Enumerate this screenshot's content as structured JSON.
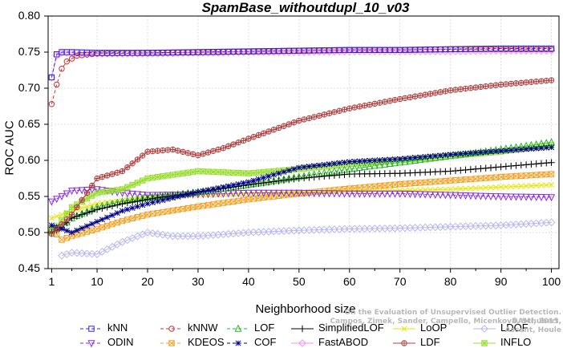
{
  "chart_data": {
    "type": "line",
    "title": "SpamBase_withoutdupl_10_v03",
    "xlabel": "Neighborhood size",
    "ylabel": "ROC AUC",
    "xlim": [
      1,
      100
    ],
    "ylim": [
      0.45,
      0.8
    ],
    "xticks": [
      "1",
      "10",
      "20",
      "30",
      "40",
      "50",
      "60",
      "70",
      "80",
      "90",
      "100"
    ],
    "yticks": [
      "0.45",
      "0.50",
      "0.55",
      "0.60",
      "0.65",
      "0.70",
      "0.75",
      "0.80"
    ],
    "legend_position": "bottom",
    "series": [
      {
        "name": "kNN",
        "color": "#2b2bd9",
        "marker": "square",
        "dash": "4,3",
        "points": [
          [
            1,
            0.715
          ],
          [
            2,
            0.747
          ],
          [
            3,
            0.75
          ],
          [
            5,
            0.75
          ],
          [
            10,
            0.749
          ],
          [
            20,
            0.749
          ],
          [
            30,
            0.75
          ],
          [
            40,
            0.751
          ],
          [
            50,
            0.752
          ],
          [
            60,
            0.753
          ],
          [
            70,
            0.753
          ],
          [
            80,
            0.754
          ],
          [
            90,
            0.755
          ],
          [
            100,
            0.755
          ]
        ]
      },
      {
        "name": "kNNW",
        "color": "#c83030",
        "marker": "circle",
        "dash": "4,3",
        "points": [
          [
            1,
            0.678
          ],
          [
            2,
            0.705
          ],
          [
            3,
            0.727
          ],
          [
            4,
            0.737
          ],
          [
            6,
            0.745
          ],
          [
            10,
            0.748
          ],
          [
            20,
            0.749
          ],
          [
            30,
            0.75
          ],
          [
            40,
            0.751
          ],
          [
            50,
            0.752
          ],
          [
            60,
            0.753
          ],
          [
            70,
            0.753
          ],
          [
            80,
            0.754
          ],
          [
            90,
            0.754
          ],
          [
            100,
            0.754
          ]
        ]
      },
      {
        "name": "LOF",
        "color": "#22b822",
        "marker": "triangle-up",
        "dash": "4,3",
        "points": [
          [
            1,
            0.505
          ],
          [
            3,
            0.508
          ],
          [
            5,
            0.52
          ],
          [
            10,
            0.535
          ],
          [
            15,
            0.543
          ],
          [
            20,
            0.548
          ],
          [
            30,
            0.556
          ],
          [
            40,
            0.566
          ],
          [
            50,
            0.577
          ],
          [
            60,
            0.588
          ],
          [
            70,
            0.597
          ],
          [
            80,
            0.606
          ],
          [
            90,
            0.615
          ],
          [
            100,
            0.625
          ]
        ]
      },
      {
        "name": "SimplifiedLOF",
        "color": "#000000",
        "marker": "plus",
        "dash": "",
        "points": [
          [
            1,
            0.5
          ],
          [
            3,
            0.507
          ],
          [
            5,
            0.52
          ],
          [
            10,
            0.532
          ],
          [
            15,
            0.54
          ],
          [
            20,
            0.546
          ],
          [
            30,
            0.556
          ],
          [
            40,
            0.566
          ],
          [
            50,
            0.575
          ],
          [
            60,
            0.581
          ],
          [
            70,
            0.582
          ],
          [
            80,
            0.585
          ],
          [
            90,
            0.591
          ],
          [
            100,
            0.597
          ]
        ]
      },
      {
        "name": "LoOP",
        "color": "#e6e600",
        "marker": "x",
        "dash": "",
        "points": [
          [
            1,
            0.52
          ],
          [
            5,
            0.53
          ],
          [
            10,
            0.54
          ],
          [
            20,
            0.548
          ],
          [
            30,
            0.552
          ],
          [
            40,
            0.554
          ],
          [
            50,
            0.556
          ],
          [
            60,
            0.557
          ],
          [
            70,
            0.558
          ],
          [
            80,
            0.56
          ],
          [
            90,
            0.563
          ],
          [
            100,
            0.566
          ]
        ]
      },
      {
        "name": "LDOF",
        "color": "#b8b8f0",
        "marker": "diamond",
        "dash": "",
        "points": [
          [
            3,
            0.468
          ],
          [
            5,
            0.472
          ],
          [
            10,
            0.47
          ],
          [
            15,
            0.487
          ],
          [
            20,
            0.5
          ],
          [
            25,
            0.495
          ],
          [
            30,
            0.495
          ],
          [
            40,
            0.5
          ],
          [
            50,
            0.503
          ],
          [
            60,
            0.505
          ],
          [
            70,
            0.506
          ],
          [
            80,
            0.508
          ],
          [
            90,
            0.51
          ],
          [
            100,
            0.514
          ]
        ]
      },
      {
        "name": "ODIN",
        "color": "#8a2be2",
        "marker": "triangle-down",
        "dash": "4,3",
        "points": [
          [
            1,
            0.543
          ],
          [
            5,
            0.558
          ],
          [
            10,
            0.56
          ],
          [
            15,
            0.555
          ],
          [
            20,
            0.552
          ],
          [
            30,
            0.553
          ],
          [
            40,
            0.555
          ],
          [
            50,
            0.555
          ],
          [
            60,
            0.554
          ],
          [
            70,
            0.554
          ],
          [
            80,
            0.552
          ],
          [
            90,
            0.55
          ],
          [
            100,
            0.549
          ]
        ]
      },
      {
        "name": "KDEOS",
        "color": "#f4a020",
        "marker": "square-x",
        "dash": "4,3",
        "points": [
          [
            1,
            0.505
          ],
          [
            3,
            0.49
          ],
          [
            5,
            0.495
          ],
          [
            10,
            0.505
          ],
          [
            15,
            0.516
          ],
          [
            20,
            0.525
          ],
          [
            30,
            0.536
          ],
          [
            40,
            0.546
          ],
          [
            50,
            0.554
          ],
          [
            60,
            0.561
          ],
          [
            70,
            0.567
          ],
          [
            80,
            0.572
          ],
          [
            90,
            0.577
          ],
          [
            100,
            0.581
          ]
        ]
      },
      {
        "name": "COF",
        "color": "#00008b",
        "marker": "star",
        "dash": "4,3",
        "points": [
          [
            1,
            0.51
          ],
          [
            5,
            0.5
          ],
          [
            10,
            0.515
          ],
          [
            15,
            0.53
          ],
          [
            20,
            0.54
          ],
          [
            30,
            0.556
          ],
          [
            40,
            0.57
          ],
          [
            50,
            0.59
          ],
          [
            60,
            0.598
          ],
          [
            70,
            0.602
          ],
          [
            80,
            0.608
          ],
          [
            90,
            0.613
          ],
          [
            100,
            0.618
          ]
        ]
      },
      {
        "name": "FastABOD",
        "color": "#ff88ff",
        "marker": "diamond",
        "dash": "",
        "points": [
          [
            1,
            0.715
          ],
          [
            2,
            0.745
          ],
          [
            3,
            0.749
          ],
          [
            5,
            0.749
          ],
          [
            10,
            0.748
          ],
          [
            20,
            0.748
          ],
          [
            30,
            0.749
          ],
          [
            40,
            0.75
          ],
          [
            50,
            0.75
          ],
          [
            60,
            0.751
          ],
          [
            70,
            0.751
          ],
          [
            80,
            0.751
          ],
          [
            90,
            0.752
          ],
          [
            100,
            0.752
          ]
        ]
      },
      {
        "name": "LDF",
        "color": "#b04040",
        "marker": "circle-plus",
        "dash": "",
        "points": [
          [
            1,
            0.498
          ],
          [
            5,
            0.525
          ],
          [
            10,
            0.575
          ],
          [
            15,
            0.585
          ],
          [
            20,
            0.612
          ],
          [
            25,
            0.615
          ],
          [
            30,
            0.607
          ],
          [
            35,
            0.617
          ],
          [
            40,
            0.63
          ],
          [
            50,
            0.655
          ],
          [
            60,
            0.672
          ],
          [
            70,
            0.685
          ],
          [
            80,
            0.697
          ],
          [
            90,
            0.705
          ],
          [
            100,
            0.711
          ]
        ]
      },
      {
        "name": "INFLO",
        "color": "#99dd33",
        "marker": "square-star",
        "dash": "",
        "points": [
          [
            1,
            0.5
          ],
          [
            5,
            0.535
          ],
          [
            10,
            0.555
          ],
          [
            15,
            0.56
          ],
          [
            20,
            0.575
          ],
          [
            25,
            0.58
          ],
          [
            30,
            0.585
          ],
          [
            40,
            0.582
          ],
          [
            50,
            0.588
          ],
          [
            60,
            0.595
          ],
          [
            70,
            0.6
          ],
          [
            80,
            0.606
          ],
          [
            90,
            0.612
          ],
          [
            100,
            0.621
          ]
        ]
      }
    ],
    "legend_order": [
      "kNN",
      "kNNW",
      "LOF",
      "SimplifiedLOF",
      "LoOP",
      "LDOF",
      "ODIN",
      "KDEOS",
      "COF",
      "FastABOD",
      "LDF",
      "INFLO"
    ]
  },
  "watermark": {
    "line1": "Campos, Zimek, Sander, Campello, Micenková, Schubert, Assent, Houle",
    "line2": "On the Evaluation of Unsupervised Outlier Detection. DAMI, 2015."
  }
}
